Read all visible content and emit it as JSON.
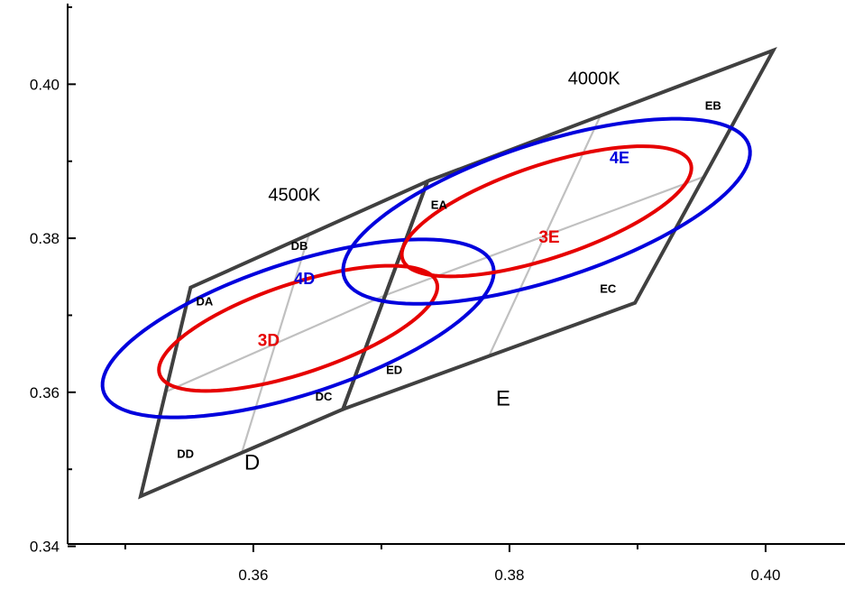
{
  "chart_data": {
    "type": "scatter",
    "title": "",
    "xlabel": "",
    "ylabel": "",
    "xlim": [
      0.3455,
      0.4062
    ],
    "ylim": [
      0.3403,
      0.41
    ],
    "x_ticks": [
      0.36,
      0.38,
      0.4
    ],
    "x_tick_labels": [
      "0.36",
      "0.38",
      "0.40"
    ],
    "y_ticks": [
      0.34,
      0.36,
      0.38,
      0.4
    ],
    "y_tick_labels": [
      "0.34",
      "0.36",
      "0.38",
      "0.40"
    ],
    "grid": false,
    "regions": [
      {
        "name": "D",
        "polygon": [
          [
            0.3551,
            0.3736
          ],
          [
            0.3736,
            0.3874
          ],
          [
            0.367,
            0.3578
          ],
          [
            0.3512,
            0.3465
          ]
        ],
        "sub_bins": [
          "DA",
          "DB",
          "DC",
          "DD"
        ]
      },
      {
        "name": "E",
        "polygon": [
          [
            0.3736,
            0.3874
          ],
          [
            0.4006,
            0.4044
          ],
          [
            0.3898,
            0.3716
          ],
          [
            0.367,
            0.3578
          ]
        ],
        "sub_bins": [
          "EA",
          "EB",
          "EC",
          "ED"
        ]
      }
    ],
    "ellipses": [
      {
        "name": "4D",
        "color": "#0000dd",
        "center": [
          0.3635,
          0.3683
        ],
        "semi_major": 0.0175,
        "semi_minor": 0.0078,
        "angle_deg": 33
      },
      {
        "name": "3D",
        "color": "#e60000",
        "center": [
          0.3635,
          0.3683
        ],
        "semi_major": 0.0125,
        "semi_minor": 0.0053,
        "angle_deg": 33
      },
      {
        "name": "4E",
        "color": "#0000dd",
        "center": [
          0.3829,
          0.3835
        ],
        "semi_major": 0.0182,
        "semi_minor": 0.0081,
        "angle_deg": 33
      },
      {
        "name": "3E",
        "color": "#e60000",
        "center": [
          0.3829,
          0.3835
        ],
        "semi_major": 0.013,
        "semi_minor": 0.0055,
        "angle_deg": 33
      }
    ],
    "annotations": [
      {
        "text": "4500K",
        "x": 0.3632,
        "y": 0.3855,
        "kind": "cct"
      },
      {
        "text": "4000K",
        "x": 0.3866,
        "y": 0.4006,
        "kind": "cct"
      },
      {
        "text": "D",
        "x": 0.3599,
        "y": 0.3507,
        "kind": "region"
      },
      {
        "text": "E",
        "x": 0.3795,
        "y": 0.359,
        "kind": "region"
      },
      {
        "text": "DA",
        "x": 0.3562,
        "y": 0.3717,
        "kind": "bin"
      },
      {
        "text": "DB",
        "x": 0.3636,
        "y": 0.3789,
        "kind": "bin"
      },
      {
        "text": "DC",
        "x": 0.3655,
        "y": 0.3593,
        "kind": "bin"
      },
      {
        "text": "DD",
        "x": 0.3547,
        "y": 0.3519,
        "kind": "bin"
      },
      {
        "text": "EA",
        "x": 0.3745,
        "y": 0.3842,
        "kind": "bin"
      },
      {
        "text": "EB",
        "x": 0.3959,
        "y": 0.3971,
        "kind": "bin"
      },
      {
        "text": "EC",
        "x": 0.3877,
        "y": 0.3733,
        "kind": "bin"
      },
      {
        "text": "ED",
        "x": 0.371,
        "y": 0.3628,
        "kind": "bin"
      },
      {
        "text": "4D",
        "x": 0.364,
        "y": 0.3746,
        "kind": "blue"
      },
      {
        "text": "3D",
        "x": 0.3612,
        "y": 0.3666,
        "kind": "red"
      },
      {
        "text": "4E",
        "x": 0.3886,
        "y": 0.3903,
        "kind": "blue"
      },
      {
        "text": "3E",
        "x": 0.3831,
        "y": 0.38,
        "kind": "red"
      }
    ],
    "colors": {
      "outline": "#404040",
      "divider": "#c0c0c0",
      "red": "#e60000",
      "blue": "#0000dd"
    }
  }
}
